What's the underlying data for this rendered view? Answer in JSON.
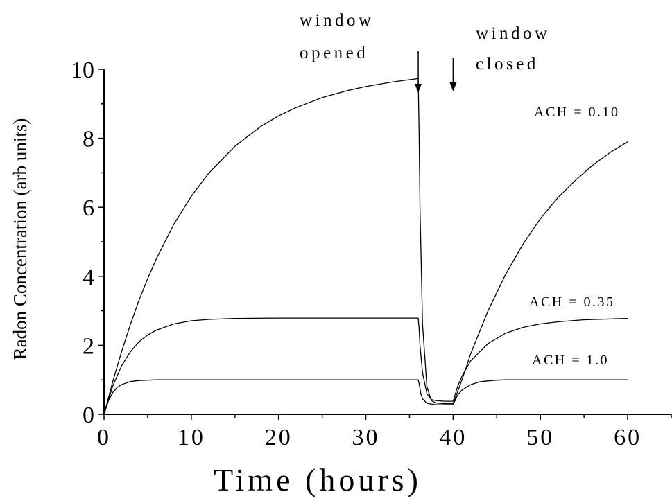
{
  "chart_data": {
    "type": "line",
    "title": "",
    "xlabel": "Time (hours)",
    "ylabel": "Radon Concentration (arb units)",
    "xlim": [
      0,
      65
    ],
    "ylim": [
      0,
      10
    ],
    "x_ticks": [
      0,
      10,
      20,
      30,
      40,
      50,
      60
    ],
    "y_ticks": [
      0,
      2,
      4,
      6,
      8,
      10
    ],
    "grid": false,
    "window_opened_hours": 36,
    "window_closed_hours": 40,
    "series": [
      {
        "name": "ACH = 0.10",
        "x": [
          0,
          1,
          2,
          3,
          4,
          5,
          6,
          8,
          10,
          12,
          15,
          18,
          20,
          22,
          25,
          28,
          30,
          33,
          36,
          36.1,
          36.2,
          36.5,
          37,
          37.5,
          38,
          39,
          40,
          40.5,
          41,
          42,
          44,
          46,
          48,
          50,
          52,
          54,
          56,
          58,
          60
        ],
        "values": [
          0,
          0.95,
          1.81,
          2.59,
          3.3,
          3.93,
          4.51,
          5.51,
          6.32,
          6.99,
          7.77,
          8.35,
          8.65,
          8.89,
          9.18,
          9.39,
          9.5,
          9.63,
          9.73,
          8.2,
          6.0,
          2.6,
          0.8,
          0.4,
          0.33,
          0.31,
          0.31,
          0.65,
          0.99,
          1.75,
          3.0,
          4.05,
          4.93,
          5.67,
          6.28,
          6.78,
          7.22,
          7.59,
          7.9
        ]
      },
      {
        "name": "ACH = 0.35",
        "x": [
          0,
          1,
          2,
          3,
          4,
          5,
          6,
          8,
          10,
          12,
          15,
          20,
          25,
          30,
          36,
          36.1,
          36.2,
          36.5,
          37,
          37.5,
          38,
          39,
          40,
          40.5,
          41,
          42,
          44,
          46,
          48,
          50,
          52,
          55,
          60
        ],
        "values": [
          0,
          0.82,
          1.4,
          1.81,
          2.1,
          2.3,
          2.44,
          2.62,
          2.71,
          2.75,
          2.78,
          2.79,
          2.79,
          2.79,
          2.79,
          2.5,
          2.0,
          1.2,
          0.6,
          0.43,
          0.4,
          0.38,
          0.38,
          0.8,
          1.1,
          1.55,
          2.05,
          2.35,
          2.52,
          2.62,
          2.68,
          2.74,
          2.78
        ]
      },
      {
        "name": "ACH = 1.0",
        "x": [
          0,
          0.5,
          1,
          1.5,
          2,
          3,
          4,
          5,
          6,
          8,
          10,
          20,
          30,
          36,
          36.1,
          36.3,
          36.5,
          37,
          38,
          39,
          40,
          40.5,
          41,
          42,
          43,
          44,
          45,
          46,
          48,
          50,
          55,
          60
        ],
        "values": [
          0,
          0.39,
          0.63,
          0.78,
          0.86,
          0.95,
          0.98,
          0.99,
          1.0,
          1.0,
          1.0,
          1.0,
          1.0,
          1.0,
          0.9,
          0.6,
          0.45,
          0.32,
          0.28,
          0.28,
          0.28,
          0.55,
          0.7,
          0.86,
          0.94,
          0.97,
          0.99,
          1.0,
          1.0,
          1.0,
          1.0,
          1.0
        ]
      }
    ],
    "series_labels": [
      "ACH = 0.10",
      "ACH = 0.35",
      "ACH = 1.0"
    ],
    "annotations": {
      "opened_line1": "window",
      "opened_line2": "opened",
      "closed_line1": "window",
      "closed_line2": "closed"
    }
  }
}
